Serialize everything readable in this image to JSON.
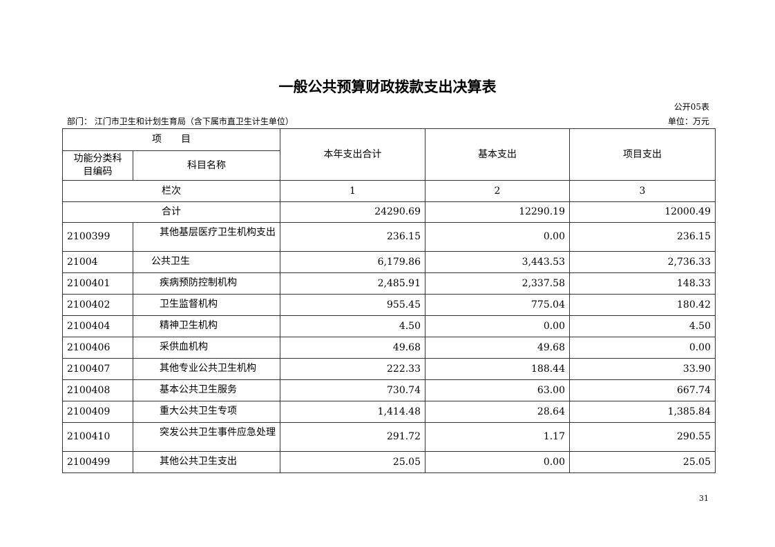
{
  "title": "一般公共预算财政拨款支出决算表",
  "table_code": "公开05表",
  "department": "部门：  江门市卫生和计划生育局（含下属市直卫生计生单位）",
  "unit": "单位：万元",
  "header": {
    "item": "项　　目",
    "code": "功能分类科目编码",
    "name": "科目名称",
    "total": "本年支出合计",
    "basic": "基本支出",
    "project": "项目支出",
    "column_label": "栏次",
    "col1": "1",
    "col2": "2",
    "col3": "3"
  },
  "sum_row": {
    "label": "合计",
    "total": "24290.69",
    "basic": "12290.19",
    "project": "12000.49"
  },
  "rows": [
    {
      "code": "2100399",
      "name": "其他基层医疗卫生机构支出",
      "total": "236.15",
      "basic": "0.00",
      "project": "236.15",
      "level": 2
    },
    {
      "code": "21004",
      "name": "公共卫生",
      "total": "6,179.86",
      "basic": "3,443.53",
      "project": "2,736.33",
      "level": 1
    },
    {
      "code": "2100401",
      "name": "疾病预防控制机构",
      "total": "2,485.91",
      "basic": "2,337.58",
      "project": "148.33",
      "level": 2
    },
    {
      "code": "2100402",
      "name": "卫生监督机构",
      "total": "955.45",
      "basic": "775.04",
      "project": "180.42",
      "level": 2
    },
    {
      "code": "2100404",
      "name": "精神卫生机构",
      "total": "4.50",
      "basic": "0.00",
      "project": "4.50",
      "level": 2
    },
    {
      "code": "2100406",
      "name": "采供血机构",
      "total": "49.68",
      "basic": "49.68",
      "project": "0.00",
      "level": 2
    },
    {
      "code": "2100407",
      "name": "其他专业公共卫生机构",
      "total": "222.33",
      "basic": "188.44",
      "project": "33.90",
      "level": 2
    },
    {
      "code": "2100408",
      "name": "基本公共卫生服务",
      "total": "730.74",
      "basic": "63.00",
      "project": "667.74",
      "level": 2
    },
    {
      "code": "2100409",
      "name": "重大公共卫生专项",
      "total": "1,414.48",
      "basic": "28.64",
      "project": "1,385.84",
      "level": 2
    },
    {
      "code": "2100410",
      "name": "突发公共卫生事件应急处理",
      "total": "291.72",
      "basic": "1.17",
      "project": "290.55",
      "level": 2
    },
    {
      "code": "2100499",
      "name": "其他公共卫生支出",
      "total": "25.05",
      "basic": "0.00",
      "project": "25.05",
      "level": 2
    }
  ],
  "page_number": "31"
}
